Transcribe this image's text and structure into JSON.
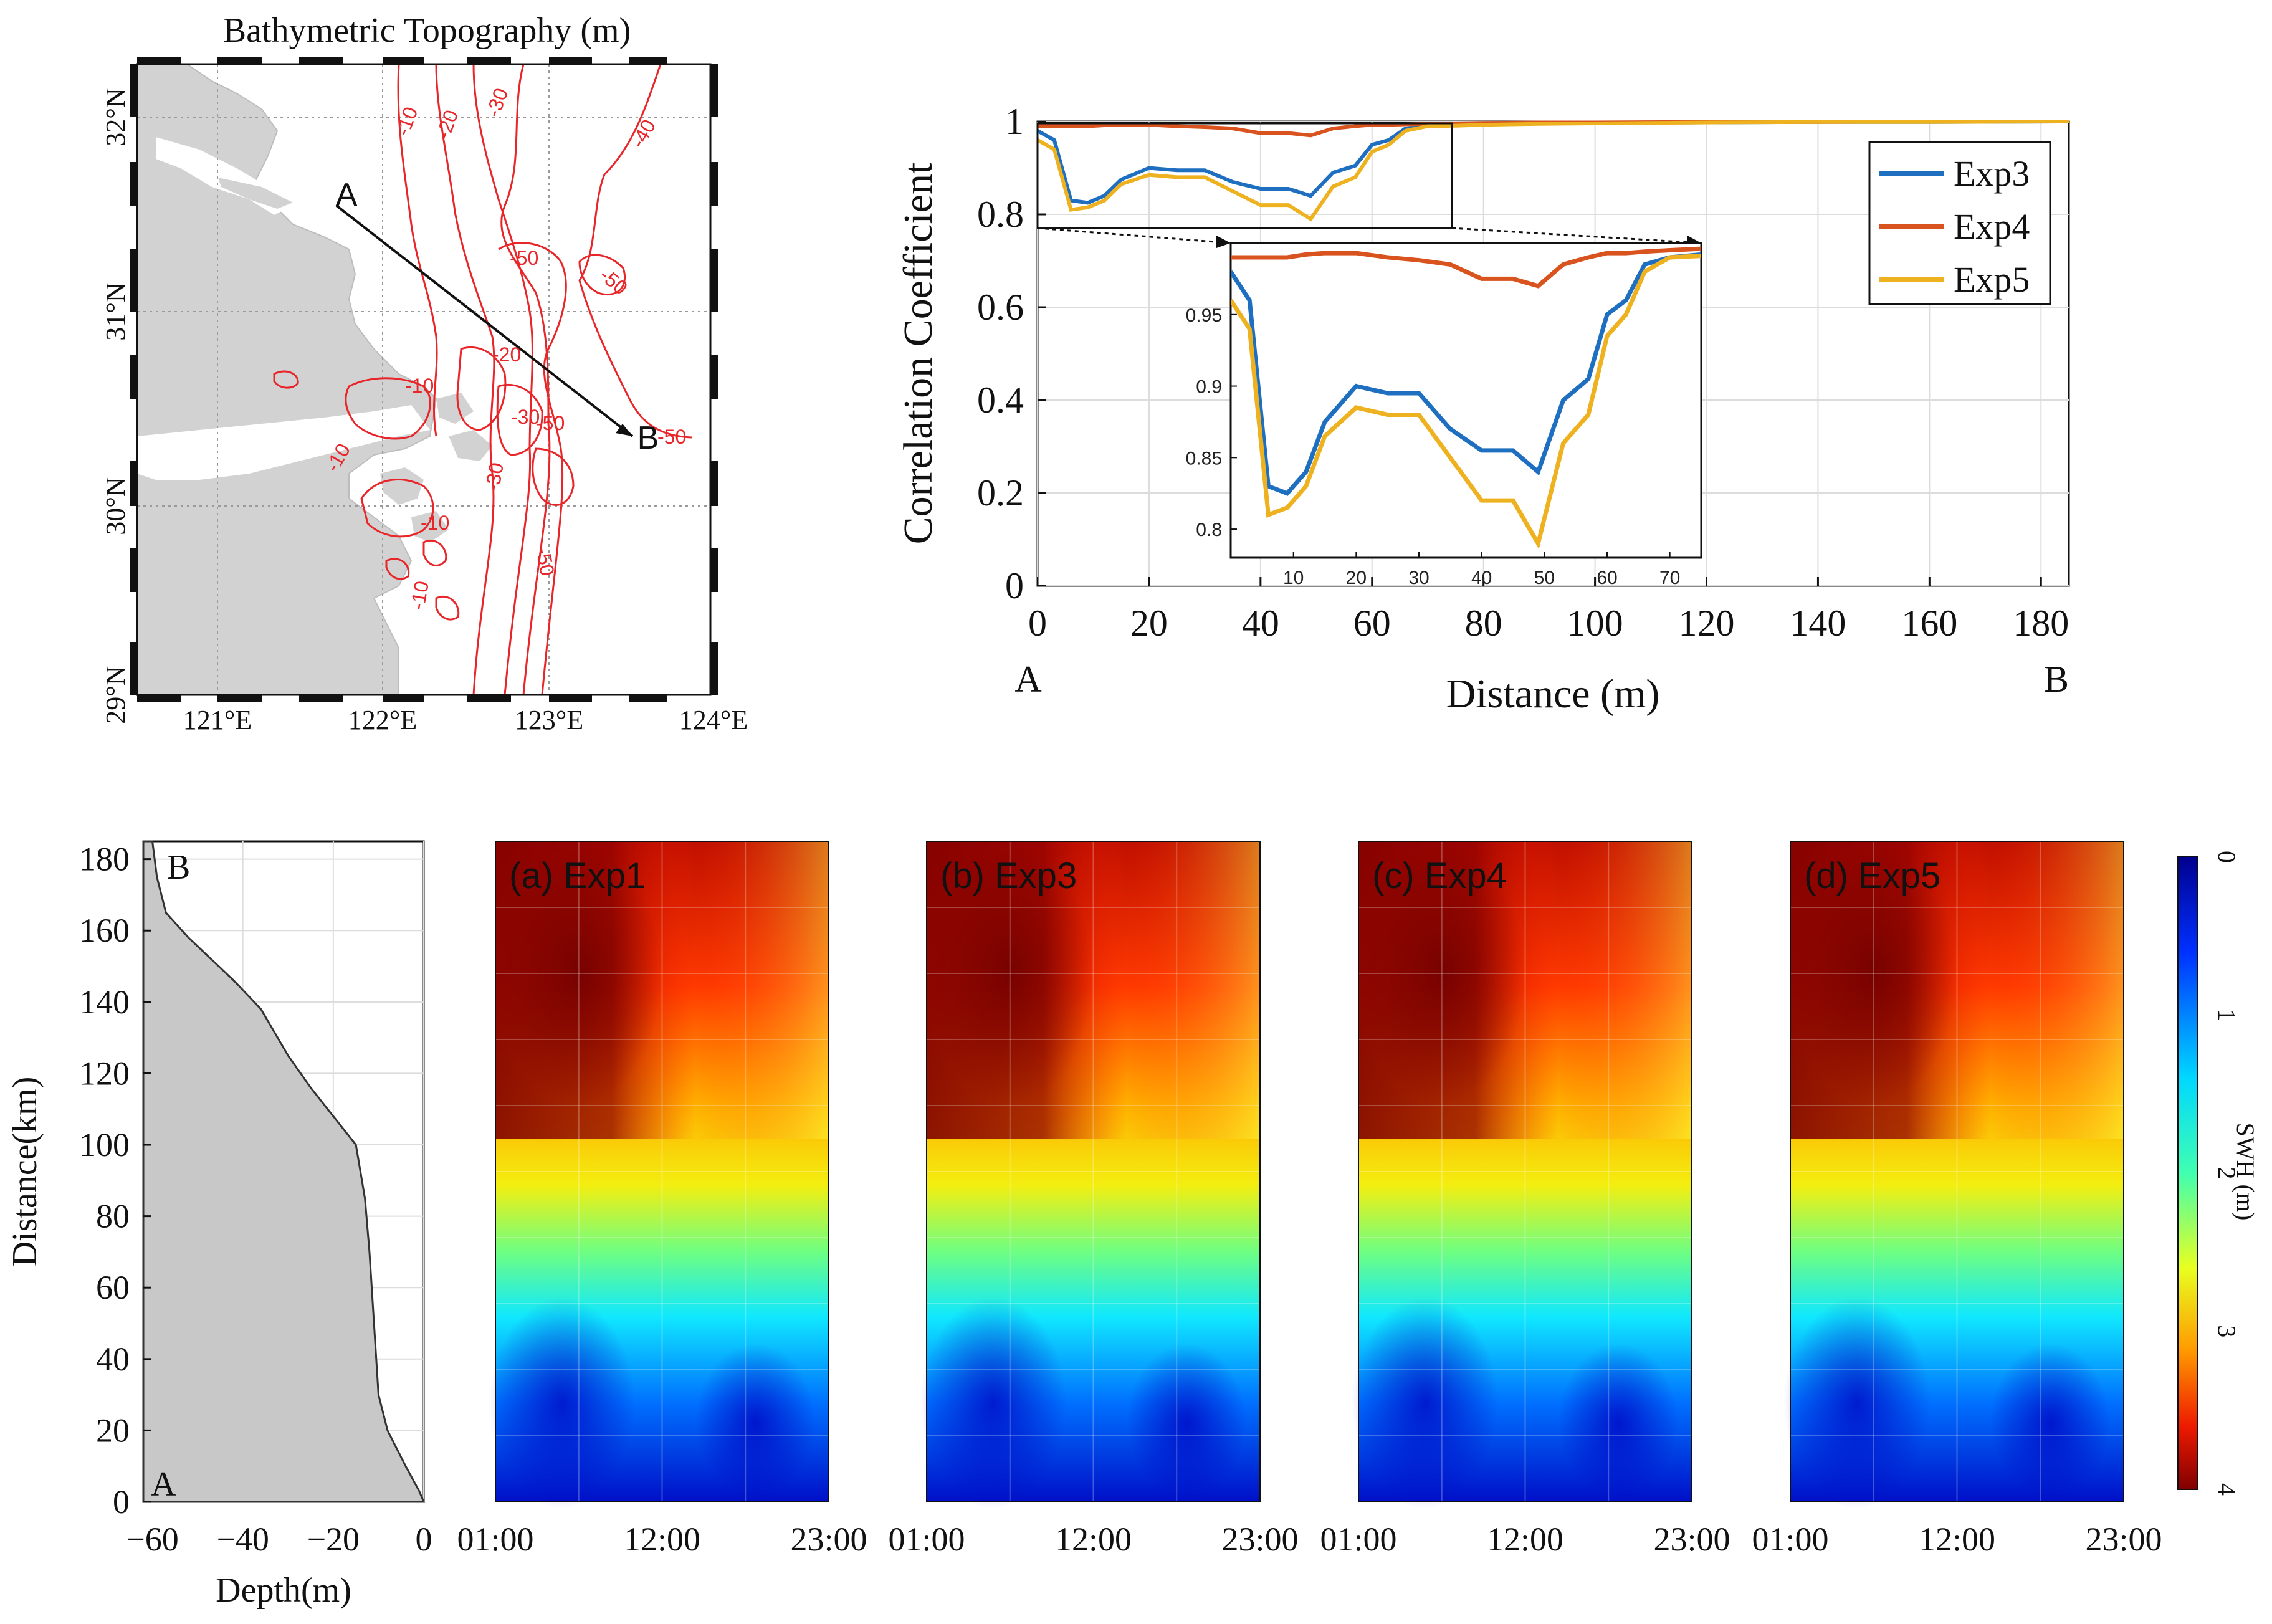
{
  "map": {
    "title": "Bathymetric Topography (m)",
    "lon_labels": [
      "121°E",
      "122°E",
      "123°E",
      "124°E"
    ],
    "lat_labels": [
      "29°N",
      "30°N",
      "31°N",
      "32°N"
    ],
    "point_a": "A",
    "point_b": "B",
    "contour_labels": [
      "-10",
      "-20",
      "-30",
      "-40",
      "-50",
      "-50",
      "-20",
      "-10",
      "-50",
      "-30",
      "-10",
      "-10",
      "-50",
      "-30",
      "-10",
      "-50"
    ],
    "colors": {
      "land": "#d2d2d2",
      "contour": "#e8262a"
    }
  },
  "corr": {
    "xlabel": "Distance (m)",
    "ylabel": "Correlation Coefficient",
    "end_a": "A",
    "end_b": "B"
  },
  "chart_data": [
    {
      "type": "line",
      "xlabel": "Distance (m)",
      "ylabel": "Correlation Coefficient",
      "xlim": [
        0,
        185
      ],
      "ylim": [
        0,
        1
      ],
      "xticks": [
        0,
        20,
        40,
        60,
        80,
        100,
        120,
        140,
        160,
        180
      ],
      "yticks": [
        0,
        0.2,
        0.4,
        0.6,
        0.8,
        1
      ],
      "grid": true,
      "legend_position": "top-right",
      "x": [
        0,
        3,
        6,
        9,
        12,
        15,
        20,
        25,
        30,
        35,
        40,
        45,
        49,
        53,
        57,
        60,
        63,
        66,
        70,
        75,
        80,
        90,
        100,
        120,
        140,
        160,
        185
      ],
      "series": [
        {
          "name": "Exp3",
          "color": "#1f6fc1",
          "values": [
            0.98,
            0.96,
            0.83,
            0.825,
            0.84,
            0.875,
            0.9,
            0.895,
            0.895,
            0.87,
            0.855,
            0.855,
            0.84,
            0.89,
            0.905,
            0.95,
            0.96,
            0.985,
            0.99,
            0.992,
            0.994,
            0.996,
            0.997,
            0.998,
            0.999,
            0.999,
            1.0
          ]
        },
        {
          "name": "Exp4",
          "color": "#d9531e",
          "values": [
            0.99,
            0.99,
            0.99,
            0.99,
            0.992,
            0.993,
            0.993,
            0.99,
            0.988,
            0.985,
            0.975,
            0.975,
            0.97,
            0.985,
            0.99,
            0.993,
            0.993,
            0.994,
            0.995,
            0.996,
            0.997,
            0.998,
            0.998,
            0.999,
            0.999,
            1.0,
            1.0
          ]
        },
        {
          "name": "Exp5",
          "color": "#eeb221",
          "values": [
            0.96,
            0.94,
            0.81,
            0.815,
            0.83,
            0.865,
            0.885,
            0.88,
            0.88,
            0.85,
            0.82,
            0.82,
            0.79,
            0.86,
            0.88,
            0.935,
            0.95,
            0.98,
            0.99,
            0.991,
            0.993,
            0.995,
            0.996,
            0.998,
            0.999,
            0.999,
            1.0
          ]
        }
      ],
      "inset": {
        "xlim": [
          0,
          75
        ],
        "ylim": [
          0.78,
          1
        ],
        "xticks": [
          10,
          20,
          30,
          40,
          50,
          60,
          70
        ],
        "yticks": [
          0.8,
          0.85,
          0.9,
          0.95
        ]
      }
    },
    {
      "type": "area",
      "xlabel": "Depth(m)",
      "ylabel": "Distance(km)",
      "xlim": [
        -62,
        0
      ],
      "ylim": [
        0,
        185
      ],
      "xticks": [
        -60,
        -40,
        -20,
        0
      ],
      "yticks": [
        0,
        20,
        40,
        60,
        80,
        100,
        120,
        140,
        160,
        180
      ],
      "grid": true,
      "end_top": "B",
      "end_bottom": "A",
      "x": [
        -60,
        -59,
        -57,
        -52,
        -47,
        -42,
        -36,
        -30,
        -25,
        -20,
        -15,
        -13,
        -12,
        -11.5,
        -11,
        -10,
        -8,
        -4,
        -1,
        0
      ],
      "y": [
        185,
        175,
        165,
        158,
        152,
        146,
        138,
        125,
        116,
        108,
        100,
        85,
        70,
        60,
        50,
        30,
        20,
        10,
        3,
        0
      ],
      "fill": "#c8c8c8"
    },
    {
      "type": "heatmap",
      "panels": [
        "(a) Exp1",
        "(b) Exp3",
        "(c) Exp4",
        "(d) Exp5"
      ],
      "xticks": [
        "01:00",
        "12:00",
        "23:00"
      ],
      "ylim": [
        0,
        185
      ],
      "colorbar": {
        "label": "SWH (m)",
        "ticks": [
          "0",
          "1",
          "2",
          "3",
          "4"
        ],
        "min": 0,
        "max": 4
      }
    }
  ]
}
